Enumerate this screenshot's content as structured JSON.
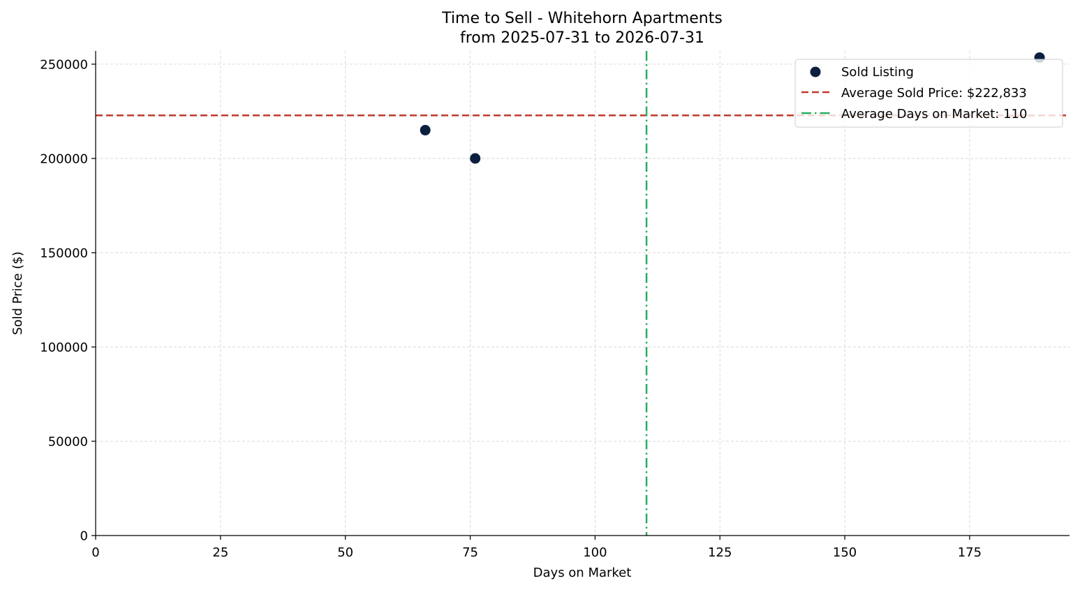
{
  "chart_data": {
    "type": "scatter",
    "title": "Time to Sell - Whitehorn Apartments",
    "subtitle": "from 2025-07-31 to 2026-07-31",
    "xlabel": "Days on Market",
    "ylabel": "Sold Price ($)",
    "xlim": [
      0,
      195
    ],
    "ylim": [
      0,
      257000
    ],
    "x_ticks": [
      0,
      25,
      50,
      75,
      100,
      125,
      150,
      175
    ],
    "y_ticks": [
      0,
      50000,
      100000,
      150000,
      200000,
      250000
    ],
    "grid": true,
    "legend_position": "top-right",
    "series": [
      {
        "name": "Sold Listing",
        "color": "#0b1f3f",
        "points": [
          {
            "x": 66,
            "y": 215000
          },
          {
            "x": 76,
            "y": 200000
          },
          {
            "x": 189,
            "y": 253500
          }
        ]
      }
    ],
    "reference_lines": [
      {
        "name": "Average Sold Price: $222,833",
        "orientation": "horizontal",
        "value": 222833,
        "color": "#c0392b",
        "style": "dashed"
      },
      {
        "name": "Average Days on Market: 110",
        "orientation": "vertical",
        "value": 110.3,
        "color": "#27ae60",
        "style": "dashdot"
      }
    ]
  }
}
